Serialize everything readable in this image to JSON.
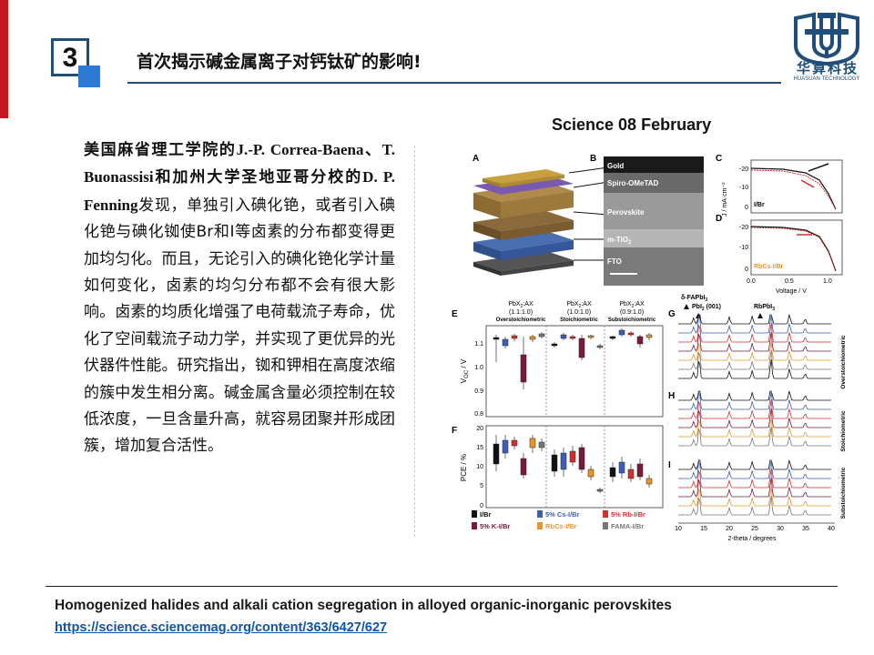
{
  "slide": {
    "number": "3",
    "title": "首次揭示碱金属离子对钙钛矿的影响!",
    "journal": "Science   08 February"
  },
  "logo": {
    "name_cn": "华算科技",
    "name_en": "HUASUAN TECHNOLOGY",
    "brand_color": "#1f4e79"
  },
  "body": {
    "bold1": "美国麻省理工学院的J.-P. Correa-Baena、T. Buonassisi和加州大学圣地亚哥分校的D. P. Fenning",
    "rest": "发现，单独引入碘化铯，或者引入碘化铯与碘化铷使Br和I等卤素的分布都变得更加均匀化。而且，无论引入的碘化铯化学计量如何变化，卤素的均匀分布都不会有很大影响。卤素的均质化增强了电荷载流子寿命，优化了空间载流子动力学，并实现了更优异的光伏器件性能。研究指出，铷和钾相在高度浓缩的簇中发生相分离。碱金属含量必须控制在较低浓度，一旦含量升高，就容易团聚并形成团簇，增加复合活性。"
  },
  "figure": {
    "panel_a": "A",
    "panel_b": "B",
    "panel_c": "C",
    "panel_d": "D",
    "panel_e": "E",
    "panel_f": "F",
    "panel_g": "G",
    "panel_h": "H",
    "panel_i": "I",
    "layer_gold": "Gold",
    "layer_spiro": "Spiro-OMeTAD",
    "layer_perov": "Perovskite",
    "layer_tio2": "m-TiO",
    "layer_tio2_sub": "2",
    "layer_fto": "FTO",
    "c_ylabel": "J / mA·cm⁻²",
    "c_label": "I/Br",
    "d_label": "RbCs-I/Br",
    "cd_xlabel": "Voltage / V",
    "cd_y_ticks": [
      "-20",
      "-10",
      "0"
    ],
    "cd_x_ticks": [
      "0.0",
      "0.5",
      "1.0"
    ],
    "e_col1": "PbX",
    "e_col1_sub": "2",
    "e_col_suffix": ":AX",
    "e_col1_ratio": "(1.1:1.0)",
    "e_col1_name": "Overstoichiometric",
    "e_col2_ratio": "(1.0:1.0)",
    "e_col2_name": "Stoichiometric",
    "e_col3_ratio": "(0.9:1.0)",
    "e_col3_name": "Substoichiometric",
    "e_ylabel": "V",
    "e_ylabel_sub": "OC",
    "e_ylabel_unit": " / V",
    "e_ticks": [
      "1.1",
      "1.0",
      "0.9",
      "0.8"
    ],
    "f_ylabel": "PCE / %",
    "f_ticks": [
      "20",
      "15",
      "10",
      "5",
      "0"
    ],
    "legend": [
      {
        "label": "I/Br",
        "color": "#111111"
      },
      {
        "label": "5% Cs-I/Br",
        "color": "#3c5fb4"
      },
      {
        "label": "5% Rb-I/Br",
        "color": "#d2302f"
      },
      {
        "label": "5% K-I/Br",
        "color": "#7a1a3a"
      },
      {
        "label": "RbCs-I/Br",
        "color": "#e8962a"
      },
      {
        "label": "FAMA-I/Br",
        "color": "#777777"
      }
    ],
    "g_peak1": "δ-FAPbI",
    "g_peak1_sub": "3",
    "g_peak2": "PbI",
    "g_peak2_sub": "2",
    "g_peak2_hkl": "(001)",
    "g_peak3": "RbPbI",
    "g_peak3_sub": "3",
    "g_side": "Overstoichiometric",
    "h_side": "Stoichiometric",
    "i_side": "Substoichiometric",
    "xrd_ticks": [
      "10",
      "15",
      "20",
      "25",
      "30",
      "35",
      "40"
    ],
    "xrd_xlabel": "2-theta / degrees"
  },
  "paper": {
    "title": "Homogenized halides and alkali cation segregation in alloyed organic-inorganic perovskites",
    "url": "https://science.sciencemag.org/content/363/6427/627"
  }
}
